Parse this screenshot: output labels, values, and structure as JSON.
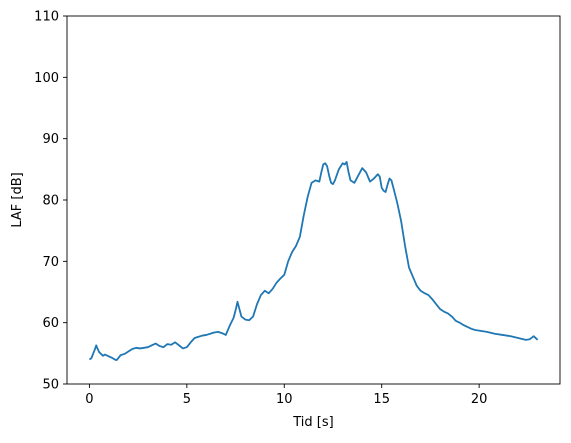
{
  "chart_data": {
    "type": "line",
    "title": "",
    "xlabel": "Tid [s]",
    "ylabel": "LAF [dB]",
    "xlim": [
      -1.15,
      24.15
    ],
    "ylim": [
      50,
      110
    ],
    "x_ticks": [
      0,
      5,
      10,
      15,
      20
    ],
    "y_ticks": [
      50,
      60,
      70,
      80,
      90,
      100,
      110
    ],
    "grid": false,
    "legend": "none",
    "series": [
      {
        "color": "#1f77b4",
        "x": [
          0,
          0.1,
          0.2,
          0.3,
          0.35,
          0.4,
          0.5,
          0.6,
          0.7,
          0.8,
          1.0,
          1.2,
          1.3,
          1.4,
          1.5,
          1.6,
          1.8,
          2.0,
          2.2,
          2.4,
          2.6,
          2.8,
          3.0,
          3.2,
          3.4,
          3.6,
          3.8,
          4.0,
          4.2,
          4.4,
          4.6,
          4.8,
          5.0,
          5.2,
          5.4,
          5.6,
          5.8,
          6.0,
          6.2,
          6.4,
          6.6,
          6.8,
          7.0,
          7.2,
          7.4,
          7.5,
          7.6,
          7.7,
          7.8,
          8.0,
          8.2,
          8.4,
          8.6,
          8.8,
          9.0,
          9.2,
          9.4,
          9.6,
          9.8,
          10.0,
          10.2,
          10.4,
          10.6,
          10.8,
          11.0,
          11.2,
          11.4,
          11.6,
          11.8,
          11.9,
          12.0,
          12.1,
          12.2,
          12.3,
          12.4,
          12.5,
          12.6,
          12.8,
          13.0,
          13.1,
          13.2,
          13.3,
          13.4,
          13.6,
          13.8,
          14.0,
          14.2,
          14.4,
          14.6,
          14.8,
          14.9,
          15.0,
          15.1,
          15.2,
          15.3,
          15.4,
          15.5,
          15.6,
          15.8,
          16.0,
          16.2,
          16.4,
          16.6,
          16.8,
          17.0,
          17.2,
          17.4,
          17.6,
          17.8,
          18.0,
          18.2,
          18.4,
          18.6,
          18.8,
          19.0,
          19.2,
          19.4,
          19.6,
          19.8,
          20.0,
          20.4,
          20.8,
          21.2,
          21.6,
          22.0,
          22.4,
          22.6,
          22.8,
          23.0
        ],
        "y": [
          54.0,
          54.2,
          55.0,
          55.8,
          56.3,
          55.9,
          55.2,
          54.9,
          54.6,
          54.8,
          54.5,
          54.2,
          54.0,
          53.9,
          54.3,
          54.7,
          54.9,
          55.3,
          55.7,
          55.9,
          55.8,
          55.9,
          56.0,
          56.3,
          56.6,
          56.2,
          56.0,
          56.5,
          56.4,
          56.8,
          56.3,
          55.8,
          56.0,
          56.8,
          57.5,
          57.7,
          57.9,
          58.0,
          58.2,
          58.4,
          58.5,
          58.3,
          58.0,
          59.5,
          60.8,
          62.0,
          63.4,
          62.2,
          61.0,
          60.5,
          60.4,
          61.0,
          63.0,
          64.5,
          65.2,
          64.8,
          65.5,
          66.5,
          67.2,
          67.8,
          70.0,
          71.5,
          72.5,
          74.0,
          77.5,
          80.5,
          82.8,
          83.2,
          83.0,
          84.5,
          85.8,
          86.0,
          85.5,
          84.0,
          82.8,
          82.6,
          83.2,
          85.0,
          86.0,
          85.8,
          86.2,
          84.5,
          83.2,
          82.8,
          84.0,
          85.2,
          84.5,
          83.0,
          83.5,
          84.2,
          83.8,
          82.0,
          81.5,
          81.3,
          82.5,
          83.5,
          83.2,
          82.0,
          79.5,
          76.5,
          72.5,
          69.0,
          67.5,
          66.0,
          65.2,
          64.8,
          64.5,
          63.8,
          63.0,
          62.2,
          61.8,
          61.5,
          61.0,
          60.3,
          60.0,
          59.6,
          59.3,
          59.0,
          58.8,
          58.7,
          58.5,
          58.2,
          58.0,
          57.8,
          57.5,
          57.2,
          57.3,
          57.8,
          57.2
        ]
      }
    ]
  }
}
